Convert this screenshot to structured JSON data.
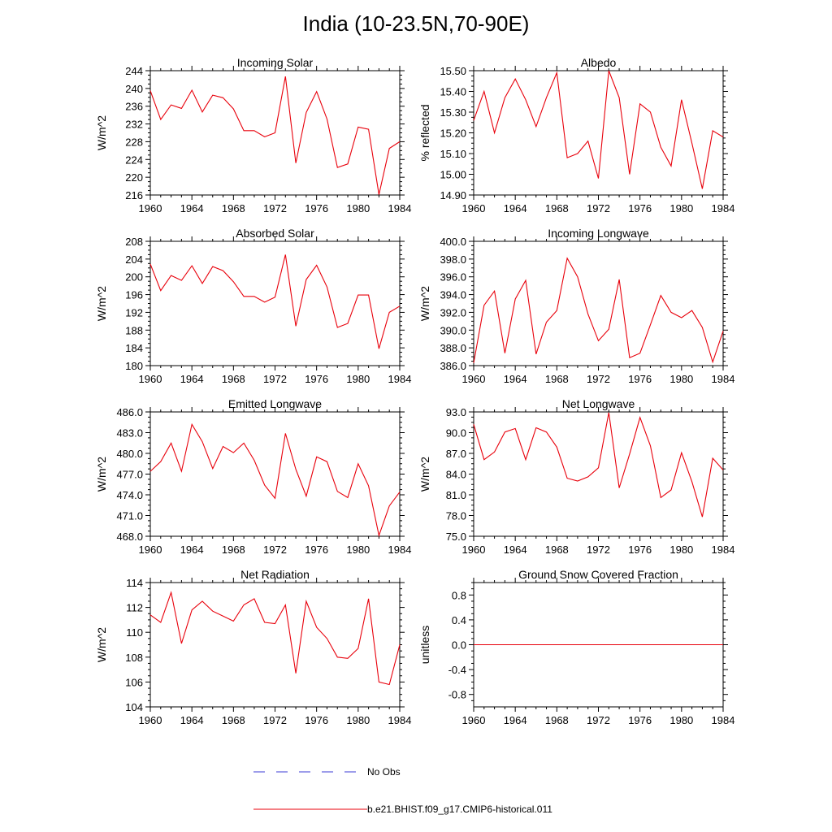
{
  "title": "India (10-23.5N,70-90E)",
  "legend": {
    "obs_label": "No Obs",
    "obs_color": "#3b3bd6",
    "model_label": "b.e21.BHIST.f09_g17.CMIP6-historical.011",
    "model_color": "#e8000b"
  },
  "chart_data": [
    {
      "type": "line",
      "title": "Incoming Solar",
      "ylabel": "W/m^2",
      "x": [
        1960,
        1961,
        1962,
        1963,
        1964,
        1965,
        1966,
        1967,
        1968,
        1969,
        1970,
        1971,
        1972,
        1973,
        1974,
        1975,
        1976,
        1977,
        1978,
        1979,
        1980,
        1981,
        1982,
        1983,
        1984
      ],
      "y": [
        239.5,
        233.0,
        236.3,
        235.5,
        239.6,
        234.7,
        238.5,
        237.9,
        235.4,
        230.5,
        230.5,
        229.1,
        230.0,
        242.7,
        223.2,
        234.6,
        239.3,
        233.1,
        222.2,
        223.0,
        231.3,
        230.8,
        216.1,
        226.5,
        228.0
      ],
      "xlim": [
        1960,
        1984
      ],
      "ylim": [
        216,
        244
      ],
      "xticks": [
        "1960",
        "1964",
        "1968",
        "1972",
        "1976",
        "1980",
        "1984"
      ],
      "yticks": [
        "216",
        "220",
        "224",
        "228",
        "232",
        "236",
        "240",
        "244"
      ],
      "color": "#e8000b"
    },
    {
      "type": "line",
      "title": "Albedo",
      "ylabel": "% reflected",
      "x": [
        1960,
        1961,
        1962,
        1963,
        1964,
        1965,
        1966,
        1967,
        1968,
        1969,
        1970,
        1971,
        1972,
        1973,
        1974,
        1975,
        1976,
        1977,
        1978,
        1979,
        1980,
        1981,
        1982,
        1983,
        1984
      ],
      "y": [
        15.26,
        15.4,
        15.2,
        15.37,
        15.46,
        15.36,
        15.23,
        15.37,
        15.49,
        15.08,
        15.1,
        15.16,
        14.98,
        15.5,
        15.37,
        15.0,
        15.34,
        15.3,
        15.13,
        15.04,
        15.36,
        15.15,
        14.93,
        15.21,
        15.18
      ],
      "xlim": [
        1960,
        1984
      ],
      "ylim": [
        14.9,
        15.5
      ],
      "xticks": [
        "1960",
        "1964",
        "1968",
        "1972",
        "1976",
        "1980",
        "1984"
      ],
      "yticks": [
        "14.90",
        "15.00",
        "15.10",
        "15.20",
        "15.30",
        "15.40",
        "15.50"
      ],
      "color": "#e8000b"
    },
    {
      "type": "line",
      "title": "Absorbed Solar",
      "ylabel": "W/m^2",
      "x": [
        1960,
        1961,
        1962,
        1963,
        1964,
        1965,
        1966,
        1967,
        1968,
        1969,
        1970,
        1971,
        1972,
        1973,
        1974,
        1975,
        1976,
        1977,
        1978,
        1979,
        1980,
        1981,
        1982,
        1983,
        1984
      ],
      "y": [
        202.9,
        196.9,
        200.3,
        199.2,
        202.5,
        198.5,
        202.3,
        201.4,
        198.9,
        195.6,
        195.6,
        194.3,
        195.4,
        205.0,
        188.9,
        199.4,
        202.6,
        197.7,
        188.6,
        189.5,
        195.9,
        195.9,
        183.8,
        192.0,
        193.4
      ],
      "xlim": [
        1960,
        1984
      ],
      "ylim": [
        180,
        208
      ],
      "xticks": [
        "1960",
        "1964",
        "1968",
        "1972",
        "1976",
        "1980",
        "1984"
      ],
      "yticks": [
        "180",
        "184",
        "188",
        "192",
        "196",
        "200",
        "204",
        "208"
      ],
      "color": "#e8000b"
    },
    {
      "type": "line",
      "title": "Incoming Longwave",
      "ylabel": "W/m^2",
      "x": [
        1960,
        1961,
        1962,
        1963,
        1964,
        1965,
        1966,
        1967,
        1968,
        1969,
        1970,
        1971,
        1972,
        1973,
        1974,
        1975,
        1976,
        1977,
        1978,
        1979,
        1980,
        1981,
        1982,
        1983,
        1984
      ],
      "y": [
        386.3,
        392.8,
        394.4,
        387.4,
        393.5,
        395.6,
        387.3,
        390.9,
        392.2,
        398.1,
        396.0,
        391.8,
        388.8,
        390.1,
        395.7,
        386.9,
        387.4,
        390.6,
        393.9,
        392.0,
        391.4,
        392.2,
        390.3,
        386.4,
        389.9
      ],
      "xlim": [
        1960,
        1984
      ],
      "ylim": [
        386,
        400
      ],
      "xticks": [
        "1960",
        "1964",
        "1968",
        "1972",
        "1976",
        "1980",
        "1984"
      ],
      "yticks": [
        "386.0",
        "388.0",
        "390.0",
        "392.0",
        "394.0",
        "396.0",
        "398.0",
        "400.0"
      ],
      "color": "#e8000b"
    },
    {
      "type": "line",
      "title": "Emitted Longwave",
      "ylabel": "W/m^2",
      "x": [
        1960,
        1961,
        1962,
        1963,
        1964,
        1965,
        1966,
        1967,
        1968,
        1969,
        1970,
        1971,
        1972,
        1973,
        1974,
        1975,
        1976,
        1977,
        1978,
        1979,
        1980,
        1981,
        1982,
        1983,
        1984
      ],
      "y": [
        477.4,
        478.8,
        481.5,
        477.4,
        484.2,
        481.7,
        477.8,
        481.0,
        480.1,
        481.5,
        479.0,
        475.4,
        473.5,
        482.9,
        477.7,
        473.8,
        479.5,
        478.8,
        474.5,
        473.6,
        478.5,
        475.3,
        468.1,
        472.4,
        474.4
      ],
      "xlim": [
        1960,
        1984
      ],
      "ylim": [
        468,
        486
      ],
      "xticks": [
        "1960",
        "1964",
        "1968",
        "1972",
        "1976",
        "1980",
        "1984"
      ],
      "yticks": [
        "468.0",
        "471.0",
        "474.0",
        "477.0",
        "480.0",
        "483.0",
        "486.0"
      ],
      "color": "#e8000b"
    },
    {
      "type": "line",
      "title": "Net Longwave",
      "ylabel": "W/m^2",
      "x": [
        1960,
        1961,
        1962,
        1963,
        1964,
        1965,
        1966,
        1967,
        1968,
        1969,
        1970,
        1971,
        1972,
        1973,
        1974,
        1975,
        1976,
        1977,
        1978,
        1979,
        1980,
        1981,
        1982,
        1983,
        1984
      ],
      "y": [
        91.2,
        86.1,
        87.2,
        90.1,
        90.6,
        86.1,
        90.7,
        90.1,
        87.9,
        83.4,
        83.0,
        83.6,
        84.9,
        92.9,
        82.0,
        86.9,
        92.2,
        88.1,
        80.6,
        81.7,
        87.1,
        82.9,
        77.8,
        86.3,
        84.6
      ],
      "xlim": [
        1960,
        1984
      ],
      "ylim": [
        75,
        93
      ],
      "xticks": [
        "1960",
        "1964",
        "1968",
        "1972",
        "1976",
        "1980",
        "1984"
      ],
      "yticks": [
        "75.0",
        "78.0",
        "81.0",
        "84.0",
        "87.0",
        "90.0",
        "93.0"
      ],
      "color": "#e8000b"
    },
    {
      "type": "line",
      "title": "Net Radiation",
      "ylabel": "W/m^2",
      "x": [
        1960,
        1961,
        1962,
        1963,
        1964,
        1965,
        1966,
        1967,
        1968,
        1969,
        1970,
        1971,
        1972,
        1973,
        1974,
        1975,
        1976,
        1977,
        1978,
        1979,
        1980,
        1981,
        1982,
        1983,
        1984
      ],
      "y": [
        111.4,
        110.8,
        113.2,
        109.1,
        111.8,
        112.5,
        111.7,
        111.3,
        110.9,
        112.2,
        112.7,
        110.8,
        110.7,
        112.2,
        106.7,
        112.5,
        110.4,
        109.5,
        108.0,
        107.9,
        108.7,
        112.7,
        106.0,
        105.8,
        109.0
      ],
      "xlim": [
        1960,
        1984
      ],
      "ylim": [
        104,
        114
      ],
      "xticks": [
        "1960",
        "1964",
        "1968",
        "1972",
        "1976",
        "1980",
        "1984"
      ],
      "yticks": [
        "104",
        "106",
        "108",
        "110",
        "112",
        "114"
      ],
      "color": "#e8000b"
    },
    {
      "type": "line",
      "title": "Ground Snow Covered Fraction",
      "ylabel": "unitless",
      "x": [
        1960,
        1961,
        1962,
        1963,
        1964,
        1965,
        1966,
        1967,
        1968,
        1969,
        1970,
        1971,
        1972,
        1973,
        1974,
        1975,
        1976,
        1977,
        1978,
        1979,
        1980,
        1981,
        1982,
        1983,
        1984
      ],
      "y": [
        0,
        0,
        0,
        0,
        0,
        0,
        0,
        0,
        0,
        0,
        0,
        0,
        0,
        0,
        0,
        0,
        0,
        0,
        0,
        0,
        0,
        0,
        0,
        0,
        0
      ],
      "xlim": [
        1960,
        1984
      ],
      "ylim": [
        -1.0,
        1.0
      ],
      "xticks": [
        "1960",
        "1964",
        "1968",
        "1972",
        "1976",
        "1980",
        "1984"
      ],
      "yticks": [
        "-0.8",
        "-0.4",
        "0.0",
        "0.4",
        "0.8"
      ],
      "color": "#e8000b"
    }
  ]
}
